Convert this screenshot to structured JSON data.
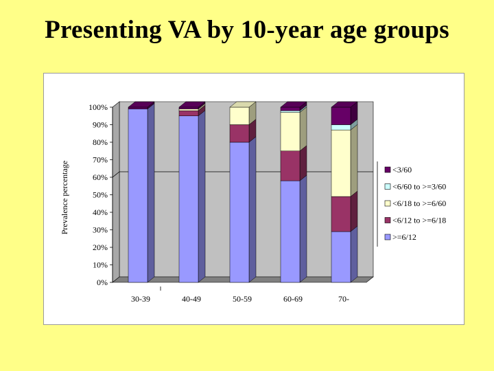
{
  "slide": {
    "title": "Presenting VA by 10-year age groups"
  },
  "chart_data": {
    "type": "bar",
    "stacked": true,
    "percent": true,
    "three_d": true,
    "categories": [
      "30-39",
      "40-49",
      "50-59",
      "60-69",
      "70-"
    ],
    "ylabel": "Prevalence percentage",
    "xlabel": "",
    "ylim": [
      0,
      100
    ],
    "yticks": [
      "0%",
      "10%",
      "20%",
      "30%",
      "40%",
      "50%",
      "60%",
      "70%",
      "80%",
      "90%",
      "100%"
    ],
    "legend_position": "right",
    "series": [
      {
        "name": ">=6/12",
        "color": "#9999ff",
        "values": [
          99,
          95,
          80,
          58,
          29
        ]
      },
      {
        "name": "<6/12 to >=6/18",
        "color": "#993366",
        "values": [
          0,
          3,
          10,
          17,
          20
        ]
      },
      {
        "name": "<6/18 to >=6/60",
        "color": "#ffffcc",
        "values": [
          0,
          1,
          10,
          22,
          38
        ]
      },
      {
        "name": "<6/60 to >=3/60",
        "color": "#ccffff",
        "values": [
          0,
          0,
          0,
          1,
          3
        ]
      },
      {
        "name": "<3/60",
        "color": "#660066",
        "values": [
          1,
          1,
          0,
          2,
          10
        ]
      }
    ],
    "reference_line": 60,
    "colors": {
      "wall": "#c0c0c0",
      "floor": "#808080",
      "grid": "#000000"
    }
  }
}
